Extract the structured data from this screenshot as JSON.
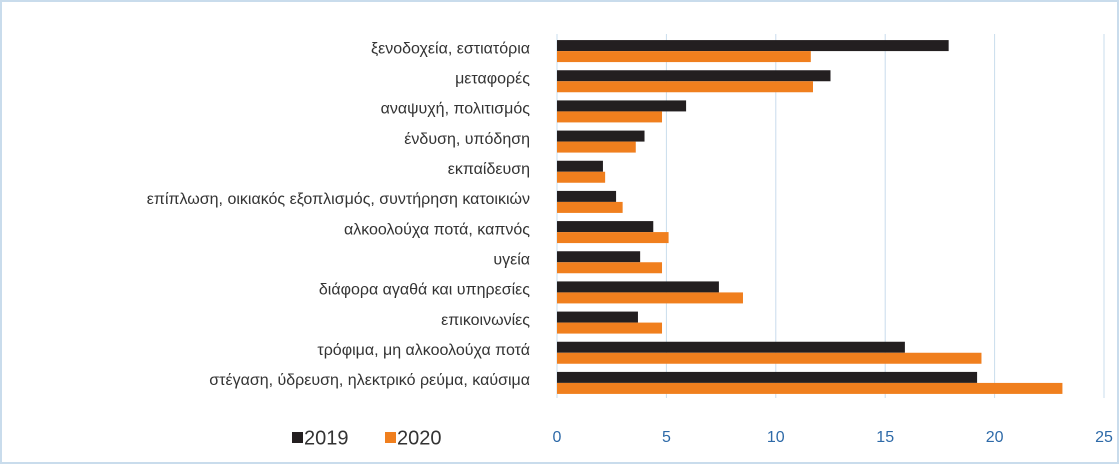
{
  "chart_data": {
    "type": "bar",
    "orientation": "horizontal",
    "categories": [
      "ξενοδοχεία, εστιατόρια",
      "μεταφορές",
      "αναψυχή, πολιτισμός",
      "ένδυση, υπόδηση",
      "εκπαίδευση",
      "επίπλωση, οικιακός εξοπλισμός, συντήρηση κατοικιών",
      "αλκοολούχα ποτά, καπνός",
      "υγεία",
      "διάφορα αγαθά και υπηρεσίες",
      "επικοινωνίες",
      "τρόφιμα, μη αλκοολούχα ποτά",
      "στέγαση, ύδρευση, ηλεκτρικό ρεύμα, καύσιμα"
    ],
    "series": [
      {
        "name": "2019",
        "color": "#231f20",
        "values": [
          17.9,
          12.5,
          5.9,
          4.0,
          2.1,
          2.7,
          4.4,
          3.8,
          7.4,
          3.7,
          15.9,
          19.2
        ]
      },
      {
        "name": "2020",
        "color": "#f07f1e",
        "values": [
          11.6,
          11.7,
          4.8,
          3.6,
          2.2,
          3.0,
          5.1,
          4.8,
          8.5,
          4.8,
          19.4,
          23.1
        ]
      }
    ],
    "xlim": [
      0,
      25
    ],
    "xticks": [
      0,
      5,
      10,
      15,
      20,
      25
    ],
    "grid": true,
    "legend": "bottom-left"
  }
}
